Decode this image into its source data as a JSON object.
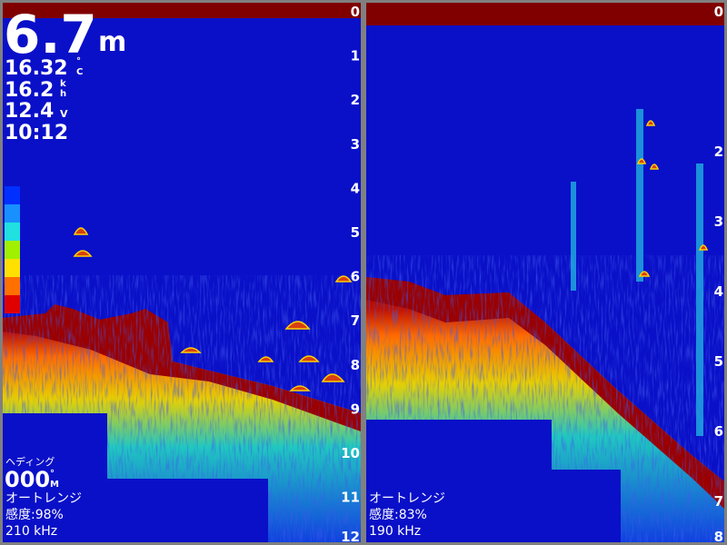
{
  "readout": {
    "depth": "6.7",
    "depth_unit": "m",
    "temperature": "16.32",
    "temperature_unit": [
      "°",
      "C"
    ],
    "speed": "16.2",
    "speed_unit": [
      "k",
      "h"
    ],
    "voltage": "12.4",
    "voltage_unit": "V",
    "time": "10:12"
  },
  "left_panel": {
    "heading_label": "ヘディング",
    "heading": "000",
    "heading_unit": [
      "°",
      "M"
    ],
    "range_mode": "オートレンジ",
    "gain": "感度:98%",
    "frequency": "210 kHz",
    "depth_scale": [
      0,
      1,
      2,
      3,
      4,
      5,
      6,
      7,
      8,
      9,
      10,
      11,
      12
    ]
  },
  "right_panel": {
    "range_mode": "オートレンジ",
    "gain": "感度:83%",
    "frequency": "190 kHz",
    "depth_scale": [
      0,
      2,
      3,
      4,
      5,
      6,
      7,
      8
    ]
  }
}
